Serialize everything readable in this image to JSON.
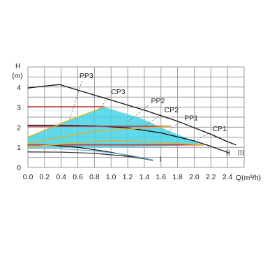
{
  "chart_data": {
    "type": "line",
    "xlabel": "Q(m³/h)",
    "ylabel": "H",
    "ylabel_unit": "(m)",
    "xlim": [
      0,
      2.6
    ],
    "ylim": [
      0,
      5
    ],
    "xticks": [
      0.0,
      0.2,
      0.4,
      0.6,
      0.8,
      1.0,
      1.2,
      1.4,
      1.6,
      1.8,
      2.0,
      2.2,
      2.4
    ],
    "xtick_labels": [
      "0.0",
      "0.2",
      "0.4",
      "0.6",
      "0.8",
      "1.0",
      "1.2",
      "1.4",
      "1.6",
      "1.8",
      "2.0",
      "2.2",
      "2.4"
    ],
    "yticks": [
      0,
      1,
      2,
      3,
      4
    ],
    "ytick_labels": [
      "0",
      "1",
      "2",
      "3",
      "4"
    ],
    "grid": true,
    "fill_region": {
      "color": "#44d2e6",
      "upper": [
        [
          0.0,
          1.5
        ],
        [
          0.5,
          2.35
        ],
        [
          0.92,
          3.0
        ],
        [
          1.35,
          2.45
        ],
        [
          1.72,
          1.78
        ],
        [
          2.0,
          1.3
        ],
        [
          2.1,
          1.12
        ]
      ],
      "lower": [
        [
          2.1,
          1.12
        ],
        [
          1.6,
          1.05
        ],
        [
          1.1,
          1.0
        ],
        [
          0.6,
          0.98
        ],
        [
          0.0,
          1.0
        ]
      ]
    },
    "series": [
      {
        "name": "III",
        "color": "#111111",
        "points": [
          [
            0.0,
            3.95
          ],
          [
            0.2,
            4.05
          ],
          [
            0.38,
            4.12
          ],
          [
            0.6,
            3.85
          ],
          [
            1.0,
            3.35
          ],
          [
            1.4,
            2.85
          ],
          [
            1.8,
            2.3
          ],
          [
            2.2,
            1.65
          ],
          [
            2.4,
            1.28
          ],
          [
            2.5,
            1.12
          ]
        ]
      },
      {
        "name": "II",
        "color": "#111111",
        "points": [
          [
            0.0,
            2.1
          ],
          [
            0.4,
            2.1
          ],
          [
            0.8,
            2.07
          ],
          [
            1.2,
            1.97
          ],
          [
            1.6,
            1.72
          ],
          [
            2.0,
            1.32
          ],
          [
            2.2,
            1.05
          ],
          [
            2.42,
            0.72
          ]
        ]
      },
      {
        "name": "I",
        "color": "#111111",
        "points": [
          [
            0.0,
            1.12
          ],
          [
            0.3,
            1.1
          ],
          [
            0.6,
            1.0
          ],
          [
            0.9,
            0.82
          ],
          [
            1.2,
            0.6
          ],
          [
            1.5,
            0.35
          ]
        ]
      },
      {
        "name": "",
        "color": "#3a3a3a",
        "points": [
          [
            0.0,
            0.77
          ],
          [
            0.4,
            0.76
          ],
          [
            0.8,
            0.7
          ],
          [
            1.2,
            0.55
          ],
          [
            1.5,
            0.37
          ]
        ]
      },
      {
        "name": "",
        "color": "#6cb7d6",
        "points": [
          [
            0.0,
            0.96
          ],
          [
            0.4,
            0.93
          ],
          [
            0.8,
            0.82
          ],
          [
            1.2,
            0.62
          ],
          [
            1.5,
            0.38
          ]
        ]
      },
      {
        "name": "CP3",
        "color": "#c8313a",
        "points": [
          [
            0.0,
            3.02
          ],
          [
            0.92,
            3.02
          ]
        ]
      },
      {
        "name": "CP2",
        "color": "#c8313a",
        "points": [
          [
            0.0,
            2.05
          ],
          [
            1.72,
            2.05
          ]
        ]
      },
      {
        "name": "CP1",
        "color": "#c8313a",
        "points": [
          [
            0.0,
            1.12
          ],
          [
            2.12,
            1.12
          ]
        ]
      },
      {
        "name": "PP3",
        "color": "#d9b23a",
        "points": [
          [
            0.0,
            1.5
          ],
          [
            0.5,
            2.35
          ],
          [
            0.92,
            3.0
          ]
        ]
      },
      {
        "name": "PP2",
        "color": "#d9b23a",
        "points": [
          [
            0.0,
            1.2
          ],
          [
            0.8,
            1.8
          ],
          [
            1.72,
            2.05
          ]
        ]
      },
      {
        "name": "PP1",
        "color": "#d9b23a",
        "points": [
          [
            0.0,
            1.02
          ],
          [
            1.0,
            1.35
          ],
          [
            2.12,
            1.12
          ]
        ]
      }
    ],
    "annotations": [
      {
        "text": "PP3",
        "line_from": [
          0.5,
          2.4
        ],
        "line_to": [
          0.65,
          4.3
        ],
        "label_at": [
          0.62,
          4.45
        ]
      },
      {
        "text": "CP3",
        "line_from": [
          0.85,
          2.85
        ],
        "line_to": [
          0.98,
          3.55
        ],
        "label_at": [
          1.0,
          3.65
        ]
      },
      {
        "text": "PP2",
        "line_from": [
          1.2,
          2.25
        ],
        "line_to": [
          1.45,
          3.1
        ],
        "label_at": [
          1.48,
          3.2
        ]
      },
      {
        "text": "CP2",
        "line_from": [
          1.42,
          2.1
        ],
        "line_to": [
          1.6,
          2.65
        ],
        "label_at": [
          1.64,
          2.75
        ]
      },
      {
        "text": "PP1",
        "line_from": [
          1.68,
          1.72
        ],
        "line_to": [
          1.82,
          2.25
        ],
        "label_at": [
          1.88,
          2.35
        ]
      },
      {
        "text": "CP1",
        "line_from": [
          2.0,
          1.28
        ],
        "line_to": [
          2.18,
          1.72
        ],
        "label_at": [
          2.22,
          1.8
        ]
      }
    ],
    "curve_labels": [
      {
        "text": "I",
        "at": [
          1.58,
          0.3
        ]
      },
      {
        "text": "II",
        "at": [
          2.38,
          0.6
        ]
      },
      {
        "text": "III",
        "at": [
          2.52,
          0.6
        ]
      }
    ]
  }
}
